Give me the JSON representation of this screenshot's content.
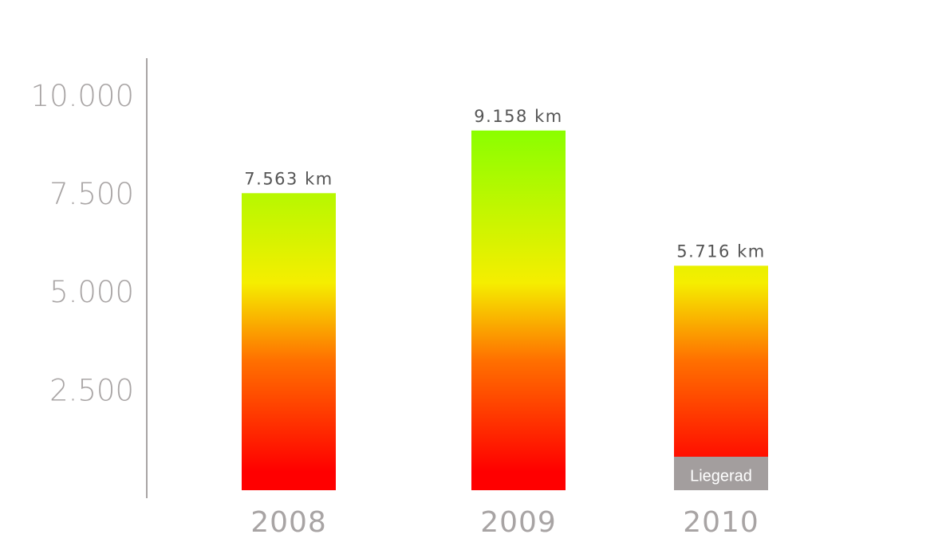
{
  "chart_data": {
    "type": "bar",
    "categories": [
      "2008",
      "2009",
      "2010"
    ],
    "values": [
      7563,
      9158,
      5716
    ],
    "value_labels": [
      "7.563 km",
      "9.158 km",
      "5.716 km"
    ],
    "gradient_colors": [
      "#ff0000",
      "#ff7000",
      "#f5ee00",
      "#88ff00"
    ],
    "ylim": [
      0,
      11000
    ],
    "yticks": [
      {
        "value": 2500,
        "label": "2.500"
      },
      {
        "value": 5000,
        "label": "5.000"
      },
      {
        "value": 7500,
        "label": "7.500"
      },
      {
        "value": 10000,
        "label": "10.000"
      }
    ],
    "annotation": "Liegerad"
  }
}
